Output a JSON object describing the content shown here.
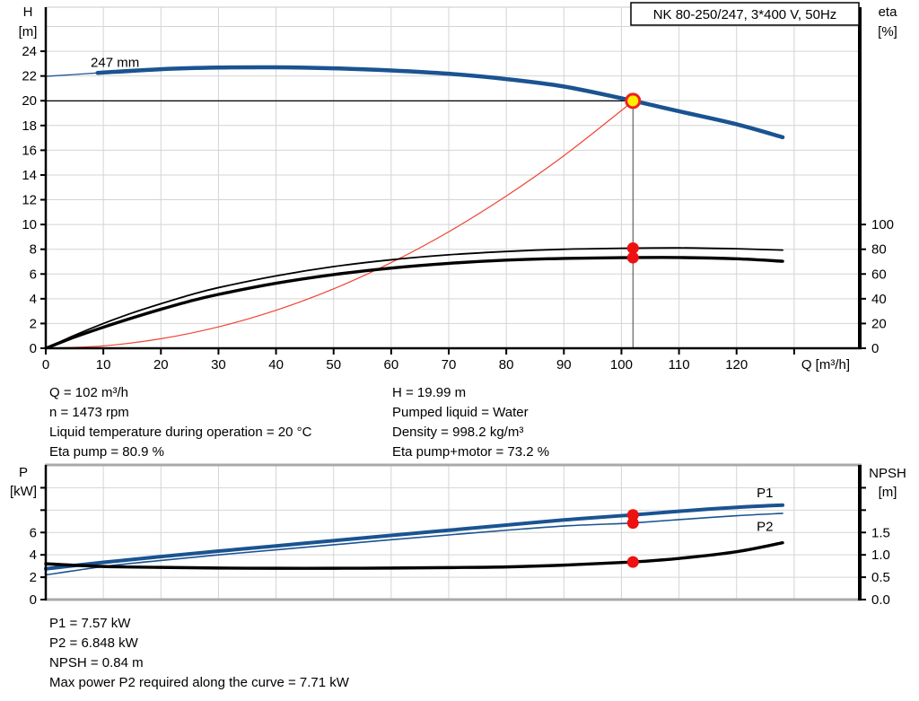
{
  "colors": {
    "curve_blue": "#1a5391",
    "curve_black": "#000000",
    "curve_red": "#ef4434",
    "dot_red": "#ee1111",
    "duty_yellow": "#ffee00",
    "duty_ring_red": "#ee2222",
    "grid": "#d4d4d4",
    "gray_border": "#a9a9a9",
    "axis": "#000000"
  },
  "chart_data": [
    {
      "type": "line",
      "title": "NK 80-250/247, 3*400 V, 50Hz",
      "xlabel": "Q [m³/h]",
      "ylabel_left": [
        "H",
        "[m]"
      ],
      "ylabel_right": [
        "eta",
        "[%]"
      ],
      "xlim": [
        0,
        141.4
      ],
      "ylim_left": [
        0,
        27.56
      ],
      "grid": true,
      "x_axis": {
        "ticks": [
          0,
          10,
          20,
          30,
          40,
          50,
          60,
          70,
          80,
          90,
          100,
          110,
          120,
          130
        ],
        "labels": [
          "0",
          "10",
          "20",
          "30",
          "40",
          "50",
          "60",
          "70",
          "80",
          "90",
          "100",
          "110",
          "120",
          ""
        ],
        "title": "Q [m³/h]"
      },
      "y_left": {
        "ticks": [
          0,
          2,
          4,
          6,
          8,
          10,
          12,
          14,
          16,
          18,
          20,
          22,
          24
        ],
        "labels": [
          "0",
          "2",
          "4",
          "6",
          "8",
          "10",
          "12",
          "14",
          "16",
          "18",
          "20",
          "22",
          "24"
        ]
      },
      "y_right": {
        "per_left": 10,
        "ticks": [
          0,
          20,
          40,
          60,
          80,
          100
        ],
        "labels": [
          "0",
          "20",
          "40",
          "60",
          "80",
          "100"
        ]
      },
      "x_grid": [
        10,
        20,
        30,
        40,
        50,
        60,
        70,
        80,
        90,
        100,
        110,
        120,
        130
      ],
      "y_grid": [
        2,
        4,
        6,
        8,
        10,
        12,
        14,
        16,
        18,
        20,
        22,
        24,
        26
      ],
      "series": [
        {
          "name": "system-curve",
          "color": "#ef4434",
          "width": 1.2,
          "axis": "left",
          "x": [
            0,
            10,
            20,
            30,
            40,
            50,
            60,
            70,
            80,
            90,
            100,
            102
          ],
          "v": [
            0,
            0.19,
            0.77,
            1.73,
            3.07,
            4.8,
            6.92,
            9.41,
            12.3,
            15.56,
            19.21,
            19.99
          ]
        },
        {
          "name": "eta-pump-curve",
          "color": "#000000",
          "width": 1.8,
          "axis": "right",
          "x": [
            0,
            5,
            10,
            15,
            20,
            25,
            30,
            40,
            50,
            60,
            70,
            80,
            90,
            100,
            110,
            120,
            128
          ],
          "v": [
            0,
            10.5,
            20,
            28.5,
            36,
            43,
            49,
            58.5,
            66,
            71.5,
            75.5,
            78.2,
            80,
            80.8,
            81.1,
            80.4,
            79.3
          ]
        },
        {
          "name": "eta-pump-motor-curve",
          "color": "#000000",
          "width": 3.4,
          "axis": "right",
          "x": [
            0,
            5,
            10,
            15,
            20,
            25,
            30,
            40,
            50,
            60,
            70,
            80,
            90,
            100,
            110,
            120,
            128
          ],
          "v": [
            0,
            9,
            17,
            24.5,
            31.5,
            38,
            43.5,
            52.5,
            59.5,
            64.8,
            68.6,
            71.2,
            72.6,
            73.2,
            73.3,
            72.3,
            70.3
          ]
        },
        {
          "name": "head-curve-thin",
          "color": "#1a5391",
          "width": 1.3,
          "axis": "left",
          "x": [
            0,
            5,
            10,
            14
          ],
          "v": [
            21.97,
            22.12,
            22.28,
            22.38
          ]
        },
        {
          "name": "head-curve-247mm",
          "color": "#1a5391",
          "width": 4.5,
          "axis": "left",
          "x": [
            9,
            20,
            30,
            40,
            50,
            60,
            70,
            80,
            90,
            100,
            110,
            120,
            128
          ],
          "v": [
            22.25,
            22.55,
            22.68,
            22.7,
            22.62,
            22.45,
            22.18,
            21.75,
            21.15,
            20.2,
            19.15,
            18.1,
            17.05
          ]
        }
      ],
      "ref_lines": [
        {
          "o": "h",
          "v": 19.99,
          "x0": 0,
          "x1": 102,
          "color": "#000000",
          "w": 1.2,
          "name": "duty-head-line"
        },
        {
          "o": "v",
          "x": 102,
          "v0": 0,
          "v1": 19.99,
          "color": "#444444",
          "w": 1,
          "name": "duty-flow-line"
        }
      ],
      "annotations": [
        {
          "text": "247 mm",
          "x": 7.8,
          "v": 22.75,
          "axis": "left",
          "color": "#000000",
          "anchor": "start",
          "name": "impeller-diameter-label"
        }
      ],
      "markers": [
        {
          "name": "eta-pump-point",
          "x": 102,
          "v": 80.9,
          "axis": "right",
          "r": 6.5,
          "fill": "#ee1111"
        },
        {
          "name": "eta-pump-motor-point",
          "x": 102,
          "v": 73.2,
          "axis": "right",
          "r": 6.5,
          "fill": "#ee1111"
        },
        {
          "name": "duty-point",
          "x": 102,
          "v": 19.99,
          "axis": "left",
          "r": 7.5,
          "fill": "#ffee00",
          "stroke": "#ee2222",
          "sw": 3
        }
      ]
    },
    {
      "type": "line",
      "title": "",
      "xlabel": "",
      "ylabel_left": [
        "P",
        "[kW]"
      ],
      "ylabel_right": [
        "NPSH",
        "[m]"
      ],
      "xlim": [
        0,
        141.4
      ],
      "ylim_left": [
        0,
        12.04
      ],
      "grid": true,
      "x_axis": {
        "ticks": [],
        "labels": [],
        "title": ""
      },
      "y_left": {
        "ticks": [
          0,
          2,
          4,
          6,
          8,
          10
        ],
        "labels": [
          "0",
          "2",
          "4",
          "6",
          "",
          ""
        ]
      },
      "y_right": {
        "per_left": 0.25,
        "ticks": [
          0,
          0.5,
          1,
          1.5,
          2,
          2.5
        ],
        "labels": [
          "0.0",
          "0.5",
          "1.0",
          "1.5",
          "",
          ""
        ]
      },
      "x_grid": [
        10,
        20,
        30,
        40,
        50,
        60,
        70,
        80,
        90,
        100,
        110,
        120,
        130
      ],
      "y_grid": [
        2,
        4,
        6,
        8,
        10
      ],
      "series": [
        {
          "name": "p2-curve",
          "color": "#1a5391",
          "width": 1.6,
          "axis": "left",
          "x": [
            0,
            10,
            20,
            30,
            40,
            50,
            60,
            70,
            80,
            90,
            100,
            102,
            110,
            120,
            128
          ],
          "v": [
            2.2,
            2.95,
            3.5,
            4.0,
            4.45,
            4.9,
            5.35,
            5.78,
            6.2,
            6.58,
            6.8,
            6.848,
            7.15,
            7.5,
            7.71
          ]
        },
        {
          "name": "p1-curve",
          "color": "#1a5391",
          "width": 4,
          "axis": "left",
          "x": [
            0,
            10,
            20,
            30,
            40,
            50,
            60,
            70,
            80,
            90,
            100,
            102,
            110,
            120,
            128
          ],
          "v": [
            2.75,
            3.33,
            3.84,
            4.33,
            4.8,
            5.27,
            5.74,
            6.2,
            6.66,
            7.12,
            7.5,
            7.57,
            7.9,
            8.25,
            8.45
          ]
        },
        {
          "name": "npsh-curve",
          "color": "#000000",
          "width": 3.4,
          "axis": "right",
          "x": [
            0,
            10,
            20,
            30,
            40,
            50,
            60,
            70,
            80,
            90,
            100,
            102,
            110,
            120,
            128
          ],
          "v": [
            0.8,
            0.74,
            0.72,
            0.705,
            0.7,
            0.7,
            0.705,
            0.715,
            0.73,
            0.77,
            0.83,
            0.84,
            0.92,
            1.07,
            1.27
          ]
        }
      ],
      "ref_lines": [],
      "annotations": [
        {
          "text": "P1",
          "x": 123.5,
          "v": 9.15,
          "axis": "left",
          "color": "#1a5391",
          "anchor": "start",
          "name": "p1-curve-label"
        },
        {
          "text": "P2",
          "x": 123.5,
          "v": 6.15,
          "axis": "left",
          "color": "#1a5391",
          "anchor": "start",
          "name": "p2-curve-label"
        }
      ],
      "markers": [
        {
          "name": "p1-point",
          "x": 102,
          "v": 7.57,
          "axis": "left",
          "r": 6.5,
          "fill": "#ee1111"
        },
        {
          "name": "p2-point",
          "x": 102,
          "v": 6.848,
          "axis": "left",
          "r": 6.5,
          "fill": "#ee1111"
        },
        {
          "name": "npsh-point",
          "x": 102,
          "v": 0.84,
          "axis": "right",
          "r": 6.5,
          "fill": "#ee1111"
        }
      ]
    }
  ],
  "info_left": {
    "lines": [
      "Q = 102 m³/h",
      "n = 1473 rpm",
      "Liquid temperature during operation = 20 °C",
      "Eta pump = 80.9 %"
    ]
  },
  "info_right": {
    "lines": [
      "H = 19.99 m",
      "Pumped liquid = Water",
      "Density = 998.2 kg/m³",
      "Eta pump+motor = 73.2 %"
    ]
  },
  "info_bottom": {
    "lines": [
      "P1 = 7.57 kW",
      "P2 = 6.848 kW",
      "NPSH = 0.84 m",
      "Max power P2 required along the curve = 7.71 kW"
    ]
  }
}
